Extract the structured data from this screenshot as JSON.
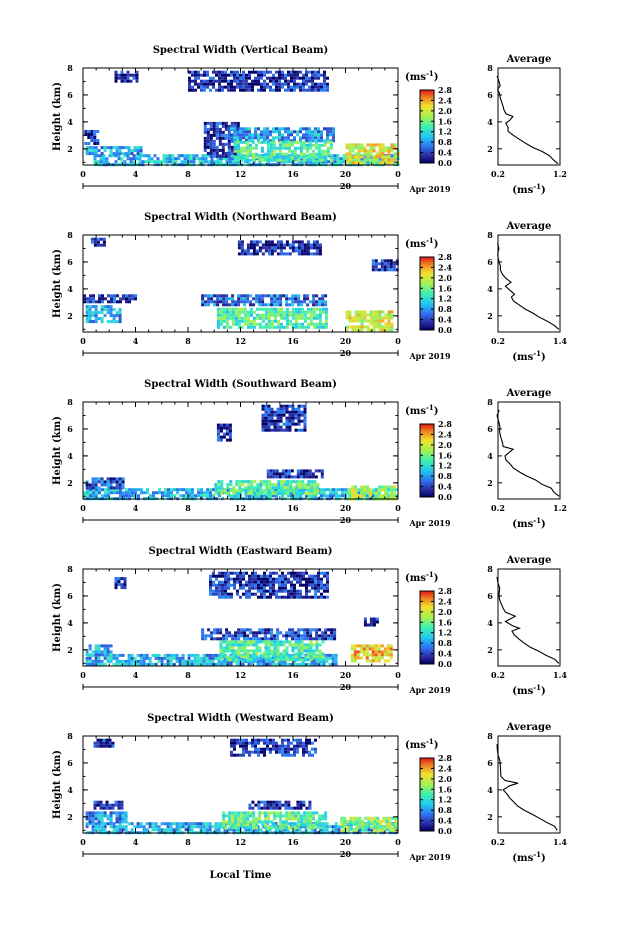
{
  "units_label": "(ms",
  "units_sup": "-1",
  "units_close": ")",
  "date_label": "Apr 2019",
  "xlabel": "Local Time",
  "ylabel": "Height (km)",
  "average_title": "Average",
  "chart_data": [
    {
      "type": "heatmap",
      "title": "Spectral Width (Vertical Beam)",
      "xlabel": "Local Time",
      "ylabel": "Height (km)",
      "x_ticks": [
        "0",
        "4",
        "8",
        "12",
        "16",
        "20",
        "0"
      ],
      "day_label": "20",
      "y_ticks": [
        "2",
        "4",
        "6",
        "8"
      ],
      "xlim": [
        0,
        24
      ],
      "ylim": [
        0.8,
        8
      ],
      "colorbar": {
        "label": "(ms-1)",
        "ticks": [
          "0.0",
          "0.4",
          "0.8",
          "1.2",
          "1.6",
          "2.0",
          "2.4",
          "2.8"
        ],
        "range": [
          0,
          2.8
        ]
      },
      "regions": [
        {
          "x": [
            0.8,
            24
          ],
          "y": [
            0.8,
            1.6
          ],
          "level": 1.0
        },
        {
          "x": [
            0.2,
            4.5
          ],
          "y": [
            1.6,
            2.2
          ],
          "level": 0.9
        },
        {
          "x": [
            0.1,
            1.2
          ],
          "y": [
            2.5,
            3.4
          ],
          "level": 0.3
        },
        {
          "x": [
            9.2,
            11.8
          ],
          "y": [
            1.5,
            4.0
          ],
          "level": 0.3
        },
        {
          "x": [
            11.2,
            19.2
          ],
          "y": [
            2.6,
            3.6
          ],
          "level": 0.8
        },
        {
          "x": [
            11.5,
            19.0
          ],
          "y": [
            1.2,
            2.6
          ],
          "level": 1.4
        },
        {
          "x": [
            20.0,
            24.0
          ],
          "y": [
            1.0,
            2.4
          ],
          "level": 2.0
        },
        {
          "x": [
            8.0,
            18.6
          ],
          "y": [
            6.4,
            7.8
          ],
          "level": 0.3
        },
        {
          "x": [
            2.4,
            4.2
          ],
          "y": [
            7.0,
            7.8
          ],
          "level": 0.3
        }
      ],
      "average_profile": {
        "xlim": [
          0.2,
          1.2
        ],
        "ylim": [
          0.8,
          8
        ],
        "x_ticks": [
          "0.2",
          "1.2"
        ],
        "y_ticks": [
          "2",
          "4",
          "6",
          "8"
        ],
        "xlabel": "(ms-1)",
        "points": [
          [
            1.18,
            0.9
          ],
          [
            1.1,
            1.2
          ],
          [
            1.02,
            1.5
          ],
          [
            0.9,
            1.8
          ],
          [
            0.78,
            2.1
          ],
          [
            0.66,
            2.4
          ],
          [
            0.55,
            2.7
          ],
          [
            0.44,
            3.0
          ],
          [
            0.38,
            3.3
          ],
          [
            0.36,
            3.6
          ],
          [
            0.32,
            3.9
          ],
          [
            0.38,
            4.1
          ],
          [
            0.44,
            4.4
          ],
          [
            0.34,
            4.6
          ],
          [
            0.3,
            4.9
          ],
          [
            0.27,
            5.2
          ],
          [
            0.24,
            5.5
          ],
          [
            0.23,
            5.8
          ],
          [
            0.22,
            6.1
          ],
          [
            0.21,
            6.4
          ],
          [
            0.22,
            6.7
          ],
          [
            0.21,
            7.0
          ],
          [
            0.2,
            7.4
          ]
        ]
      }
    },
    {
      "type": "heatmap",
      "title": "Spectral Width (Northward Beam)",
      "xlabel": "Local Time",
      "ylabel": "Height (km)",
      "x_ticks": [
        "0",
        "4",
        "8",
        "12",
        "16",
        "20",
        "0"
      ],
      "day_label": "20",
      "y_ticks": [
        "2",
        "4",
        "6",
        "8"
      ],
      "xlim": [
        0,
        24
      ],
      "ylim": [
        0.8,
        8
      ],
      "colorbar": {
        "label": "(ms-1)",
        "ticks": [
          "0.0",
          "0.4",
          "0.8",
          "1.2",
          "1.6",
          "2.0",
          "2.4",
          "2.8"
        ],
        "range": [
          0,
          2.8
        ]
      },
      "regions": [
        {
          "x": [
            0.2,
            2.8
          ],
          "y": [
            1.5,
            2.8
          ],
          "level": 0.9
        },
        {
          "x": [
            0.0,
            4.0
          ],
          "y": [
            3.0,
            3.6
          ],
          "level": 0.3
        },
        {
          "x": [
            9.0,
            18.4
          ],
          "y": [
            2.8,
            3.6
          ],
          "level": 0.6
        },
        {
          "x": [
            10.2,
            18.6
          ],
          "y": [
            1.2,
            2.6
          ],
          "level": 1.4
        },
        {
          "x": [
            20.0,
            23.6
          ],
          "y": [
            1.0,
            2.4
          ],
          "level": 2.0
        },
        {
          "x": [
            11.8,
            18.2
          ],
          "y": [
            6.6,
            7.6
          ],
          "level": 0.3
        },
        {
          "x": [
            0.6,
            1.6
          ],
          "y": [
            7.2,
            7.8
          ],
          "level": 0.3
        },
        {
          "x": [
            22.0,
            24.0
          ],
          "y": [
            5.4,
            6.2
          ],
          "level": 0.3
        }
      ],
      "average_profile": {
        "xlim": [
          0.2,
          1.4
        ],
        "ylim": [
          0.8,
          8
        ],
        "x_ticks": [
          "0.2",
          "1.4"
        ],
        "y_ticks": [
          "2",
          "4",
          "6",
          "8"
        ],
        "xlabel": "(ms-1)",
        "points": [
          [
            1.38,
            1.0
          ],
          [
            1.3,
            1.3
          ],
          [
            1.16,
            1.6
          ],
          [
            1.0,
            1.9
          ],
          [
            0.88,
            2.2
          ],
          [
            0.74,
            2.5
          ],
          [
            0.6,
            2.8
          ],
          [
            0.5,
            3.1
          ],
          [
            0.44,
            3.4
          ],
          [
            0.5,
            3.6
          ],
          [
            0.42,
            3.9
          ],
          [
            0.36,
            4.2
          ],
          [
            0.46,
            4.5
          ],
          [
            0.34,
            4.8
          ],
          [
            0.3,
            5.1
          ],
          [
            0.26,
            5.4
          ],
          [
            0.24,
            5.7
          ],
          [
            0.23,
            6.0
          ],
          [
            0.22,
            6.3
          ],
          [
            0.21,
            6.6
          ],
          [
            0.2,
            7.0
          ],
          [
            0.2,
            7.4
          ]
        ]
      }
    },
    {
      "type": "heatmap",
      "title": "Spectral Width (Southward Beam)",
      "xlabel": "Local Time",
      "ylabel": "Height (km)",
      "x_ticks": [
        "0",
        "4",
        "8",
        "12",
        "16",
        "20",
        "0"
      ],
      "day_label": "20",
      "y_ticks": [
        "2",
        "4",
        "6",
        "8"
      ],
      "xlim": [
        0,
        24
      ],
      "ylim": [
        0.8,
        8
      ],
      "colorbar": {
        "label": "(ms-1)",
        "ticks": [
          "0.0",
          "0.4",
          "0.8",
          "1.2",
          "1.6",
          "2.0",
          "2.4",
          "2.8"
        ],
        "range": [
          0,
          2.8
        ]
      },
      "regions": [
        {
          "x": [
            0.0,
            23.8
          ],
          "y": [
            0.8,
            1.6
          ],
          "level": 1.0
        },
        {
          "x": [
            0.2,
            3.0
          ],
          "y": [
            1.6,
            2.4
          ],
          "level": 0.5
        },
        {
          "x": [
            10.0,
            18.0
          ],
          "y": [
            1.2,
            2.2
          ],
          "level": 1.4
        },
        {
          "x": [
            14.0,
            18.2
          ],
          "y": [
            2.4,
            3.0
          ],
          "level": 0.3
        },
        {
          "x": [
            20.2,
            23.8
          ],
          "y": [
            0.9,
            1.8
          ],
          "level": 1.8
        },
        {
          "x": [
            13.6,
            17.0
          ],
          "y": [
            5.8,
            7.8
          ],
          "level": 0.3
        },
        {
          "x": [
            10.2,
            11.2
          ],
          "y": [
            5.2,
            6.4
          ],
          "level": 0.3
        }
      ],
      "average_profile": {
        "xlim": [
          0.2,
          1.2
        ],
        "ylim": [
          0.8,
          8
        ],
        "x_ticks": [
          "0.2",
          "1.2"
        ],
        "y_ticks": [
          "2",
          "4",
          "6",
          "8"
        ],
        "xlabel": "(ms-1)",
        "points": [
          [
            1.18,
            1.0
          ],
          [
            1.12,
            1.3
          ],
          [
            1.04,
            1.6
          ],
          [
            0.92,
            1.9
          ],
          [
            0.8,
            2.2
          ],
          [
            0.68,
            2.5
          ],
          [
            0.56,
            2.8
          ],
          [
            0.46,
            3.1
          ],
          [
            0.38,
            3.4
          ],
          [
            0.33,
            3.7
          ],
          [
            0.3,
            4.0
          ],
          [
            0.36,
            4.2
          ],
          [
            0.46,
            4.5
          ],
          [
            0.3,
            4.7
          ],
          [
            0.26,
            5.0
          ],
          [
            0.24,
            5.4
          ],
          [
            0.23,
            5.8
          ],
          [
            0.22,
            6.2
          ],
          [
            0.21,
            6.6
          ],
          [
            0.2,
            7.0
          ],
          [
            0.2,
            7.4
          ]
        ]
      }
    },
    {
      "type": "heatmap",
      "title": "Spectral Width (Eastward Beam)",
      "xlabel": "Local Time",
      "ylabel": "Height (km)",
      "x_ticks": [
        "0",
        "4",
        "8",
        "12",
        "16",
        "20",
        "0"
      ],
      "day_label": "20",
      "y_ticks": [
        "2",
        "4",
        "6",
        "8"
      ],
      "xlim": [
        0,
        24
      ],
      "ylim": [
        0.8,
        8
      ],
      "colorbar": {
        "label": "(ms-1)",
        "ticks": [
          "0.0",
          "0.4",
          "0.8",
          "1.2",
          "1.6",
          "2.0",
          "2.4",
          "2.8"
        ],
        "range": [
          0,
          2.8
        ]
      },
      "regions": [
        {
          "x": [
            0.2,
            19.2
          ],
          "y": [
            0.9,
            1.7
          ],
          "level": 0.9
        },
        {
          "x": [
            0.2,
            2.2
          ],
          "y": [
            1.7,
            2.4
          ],
          "level": 0.9
        },
        {
          "x": [
            9.0,
            19.2
          ],
          "y": [
            2.8,
            3.6
          ],
          "level": 0.4
        },
        {
          "x": [
            10.4,
            18.4
          ],
          "y": [
            1.3,
            2.7
          ],
          "level": 1.4
        },
        {
          "x": [
            20.4,
            23.6
          ],
          "y": [
            1.2,
            2.4
          ],
          "level": 2.2
        },
        {
          "x": [
            9.6,
            18.6
          ],
          "y": [
            5.8,
            7.8
          ],
          "level": 0.3
        },
        {
          "x": [
            2.4,
            3.2
          ],
          "y": [
            6.6,
            7.4
          ],
          "level": 0.3
        },
        {
          "x": [
            21.4,
            22.4
          ],
          "y": [
            3.8,
            4.4
          ],
          "level": 0.3
        }
      ],
      "average_profile": {
        "xlim": [
          0.2,
          1.4
        ],
        "ylim": [
          0.8,
          8
        ],
        "x_ticks": [
          "0.2",
          "1.4"
        ],
        "y_ticks": [
          "2",
          "4",
          "6",
          "8"
        ],
        "xlabel": "(ms-1)",
        "points": [
          [
            1.36,
            1.0
          ],
          [
            1.28,
            1.3
          ],
          [
            1.12,
            1.6
          ],
          [
            0.98,
            1.9
          ],
          [
            0.84,
            2.2
          ],
          [
            0.72,
            2.5
          ],
          [
            0.6,
            2.8
          ],
          [
            0.5,
            3.1
          ],
          [
            0.46,
            3.4
          ],
          [
            0.6,
            3.6
          ],
          [
            0.46,
            3.8
          ],
          [
            0.36,
            4.1
          ],
          [
            0.52,
            4.5
          ],
          [
            0.34,
            4.8
          ],
          [
            0.3,
            5.1
          ],
          [
            0.27,
            5.5
          ],
          [
            0.24,
            5.8
          ],
          [
            0.23,
            6.2
          ],
          [
            0.22,
            6.6
          ],
          [
            0.21,
            7.0
          ],
          [
            0.2,
            7.4
          ]
        ]
      }
    },
    {
      "type": "heatmap",
      "title": "Spectral Width (Westward Beam)",
      "xlabel": "Local Time",
      "ylabel": "Height (km)",
      "x_ticks": [
        "0",
        "4",
        "8",
        "12",
        "16",
        "20",
        "0"
      ],
      "day_label": "20",
      "y_ticks": [
        "2",
        "4",
        "6",
        "8"
      ],
      "xlim": [
        0,
        24
      ],
      "ylim": [
        0.8,
        8
      ],
      "colorbar": {
        "label": "(ms-1)",
        "ticks": [
          "0.0",
          "0.4",
          "0.8",
          "1.2",
          "1.6",
          "2.0",
          "2.4",
          "2.8"
        ],
        "range": [
          0,
          2.8
        ]
      },
      "regions": [
        {
          "x": [
            0.2,
            23.8
          ],
          "y": [
            0.8,
            1.6
          ],
          "level": 0.9
        },
        {
          "x": [
            0.2,
            3.4
          ],
          "y": [
            1.6,
            2.4
          ],
          "level": 0.8
        },
        {
          "x": [
            0.8,
            3.0
          ],
          "y": [
            2.6,
            3.2
          ],
          "level": 0.3
        },
        {
          "x": [
            12.6,
            17.2
          ],
          "y": [
            2.6,
            3.2
          ],
          "level": 0.3
        },
        {
          "x": [
            10.6,
            18.6
          ],
          "y": [
            1.1,
            2.4
          ],
          "level": 1.5
        },
        {
          "x": [
            19.6,
            23.8
          ],
          "y": [
            1.0,
            2.0
          ],
          "level": 1.7
        },
        {
          "x": [
            11.2,
            17.8
          ],
          "y": [
            6.6,
            7.8
          ],
          "level": 0.3
        },
        {
          "x": [
            0.8,
            2.4
          ],
          "y": [
            7.2,
            7.8
          ],
          "level": 0.3
        }
      ],
      "average_profile": {
        "xlim": [
          0.2,
          1.4
        ],
        "ylim": [
          0.8,
          8
        ],
        "x_ticks": [
          "0.2",
          "1.4"
        ],
        "y_ticks": [
          "2",
          "4",
          "6",
          "8"
        ],
        "xlabel": "(ms-1)",
        "points": [
          [
            1.36,
            1.0
          ],
          [
            1.28,
            1.3
          ],
          [
            1.14,
            1.6
          ],
          [
            1.0,
            1.9
          ],
          [
            0.86,
            2.2
          ],
          [
            0.72,
            2.5
          ],
          [
            0.6,
            2.8
          ],
          [
            0.5,
            3.1
          ],
          [
            0.42,
            3.4
          ],
          [
            0.38,
            3.7
          ],
          [
            0.32,
            4.0
          ],
          [
            0.42,
            4.3
          ],
          [
            0.58,
            4.5
          ],
          [
            0.32,
            4.7
          ],
          [
            0.27,
            5.0
          ],
          [
            0.25,
            5.4
          ],
          [
            0.23,
            5.8
          ],
          [
            0.22,
            6.2
          ],
          [
            0.21,
            6.6
          ],
          [
            0.2,
            7.0
          ],
          [
            0.2,
            7.4
          ]
        ]
      }
    }
  ]
}
